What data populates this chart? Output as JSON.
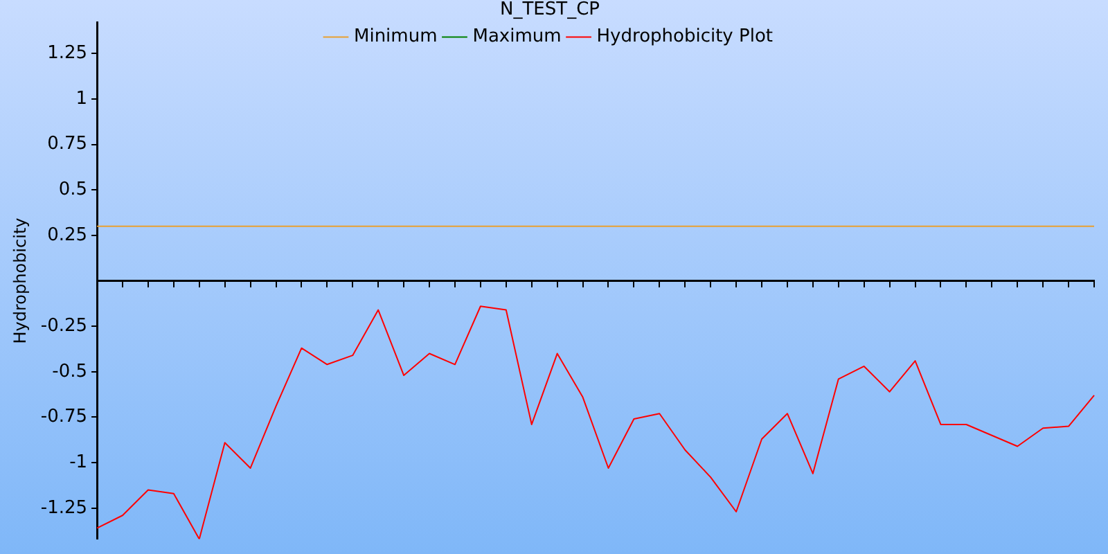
{
  "chart_data": {
    "type": "line",
    "title": "N_TEST_CP",
    "ylabel": "Hydrophobicity",
    "categories": [
      null,
      null,
      null,
      null,
      null,
      null,
      null,
      null,
      null,
      null,
      null,
      null,
      null,
      null,
      null,
      null,
      null,
      null,
      null,
      null,
      null,
      null,
      null,
      null,
      null,
      null,
      null,
      null,
      null,
      null,
      null,
      null,
      null,
      null,
      null,
      null,
      null,
      null,
      null,
      null
    ],
    "series": [
      {
        "name": "Minimum",
        "color": "#e8a030",
        "values": [
          0.3,
          0.3,
          0.3,
          0.3,
          0.3,
          0.3,
          0.3,
          0.3,
          0.3,
          0.3,
          0.3,
          0.3,
          0.3,
          0.3,
          0.3,
          0.3,
          0.3,
          0.3,
          0.3,
          0.3,
          0.3,
          0.3,
          0.3,
          0.3,
          0.3,
          0.3,
          0.3,
          0.3,
          0.3,
          0.3,
          0.3,
          0.3,
          0.3,
          0.3,
          0.3,
          0.3,
          0.3,
          0.3,
          0.3,
          0.3
        ]
      },
      {
        "name": "Maximum",
        "color": "#008000",
        "values": [
          null,
          null,
          null,
          null,
          null,
          null,
          null,
          null,
          null,
          null,
          null,
          null,
          null,
          null,
          null,
          null,
          null,
          null,
          null,
          null,
          null,
          null,
          null,
          null,
          null,
          null,
          null,
          null,
          null,
          null,
          null,
          null,
          null,
          null,
          null,
          null,
          null,
          null,
          null,
          null
        ]
      },
      {
        "name": "Hydrophobicity Plot",
        "color": "#ff0000",
        "values": [
          -1.36,
          -1.29,
          -1.15,
          -1.17,
          -1.42,
          -0.89,
          -1.03,
          -0.69,
          -0.37,
          -0.46,
          -0.41,
          -0.16,
          -0.52,
          -0.4,
          -0.46,
          -0.14,
          -0.16,
          -0.79,
          -0.4,
          -0.64,
          -1.03,
          -0.76,
          -0.73,
          -0.93,
          -1.08,
          -1.27,
          -0.87,
          -0.73,
          -1.06,
          -0.54,
          -0.47,
          -0.61,
          -0.44,
          -0.79,
          -0.79,
          -0.85,
          -0.91,
          -0.81,
          -0.8,
          -0.63
        ]
      }
    ],
    "ylim": [
      -1.42,
      1.42
    ],
    "yticks": [
      -1.25,
      -1,
      -0.75,
      -0.5,
      -0.25,
      0.25,
      0.5,
      0.75,
      1,
      1.25
    ],
    "tick_labels": "y",
    "grid": false,
    "legend": "top",
    "marker": "none",
    "line_style": "solid"
  }
}
